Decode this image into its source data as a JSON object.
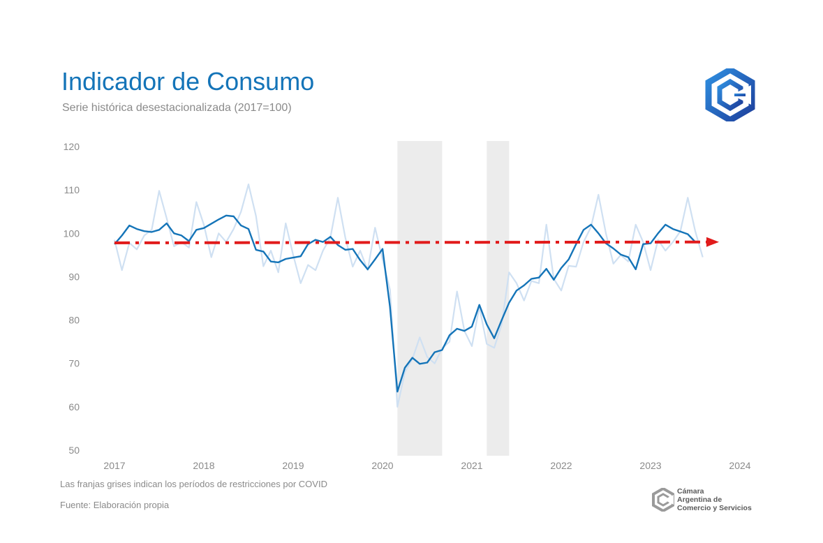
{
  "header": {
    "title": "Indicador de Consumo",
    "subtitle": "Serie histórica desestacionalizada (2017=100)"
  },
  "footer": {
    "note": "Las franjas grises indican los períodos de restricciones por COVID",
    "source": "Fuente: Elaboración propia"
  },
  "organization": {
    "line1": "Cámara",
    "line2": "Argentina de",
    "line3": "Comercio y Servicios"
  },
  "colors": {
    "title": "#1474b8",
    "seasonal_adjusted": "#1474b8",
    "original": "#cfe0f2",
    "trend_arrow": "#e11b1b",
    "covid_band": "#ececec"
  },
  "chart_data": {
    "type": "line",
    "x_start": "2017-01",
    "x_frequency": "monthly",
    "x_ticks": [
      "2017",
      "2018",
      "2019",
      "2020",
      "2021",
      "2022",
      "2023",
      "2024"
    ],
    "y_ticks": [
      "50",
      "60",
      "70",
      "80",
      "90",
      "100",
      "110",
      "120"
    ],
    "ylim": [
      50,
      120
    ],
    "xlim": [
      "2017-01",
      "2024-01"
    ],
    "grid": false,
    "legend": "none",
    "shaded_periods": [
      {
        "start": "2020-03",
        "end": "2020-09"
      },
      {
        "start": "2021-03",
        "end": "2021-06"
      }
    ],
    "trend_arrow": {
      "start": "2017-01",
      "end": "2023-10",
      "y_start": 97.8,
      "y_end": 98.0
    },
    "series": [
      {
        "role": "seasonally-adjusted",
        "values": [
          97.5,
          99.5,
          101.8,
          101.0,
          100.5,
          100.3,
          100.8,
          102.3,
          100.0,
          99.5,
          98.2,
          100.8,
          101.2,
          102.2,
          103.2,
          104.1,
          103.9,
          101.8,
          101.0,
          96.2,
          95.8,
          93.5,
          93.3,
          94.1,
          94.4,
          94.7,
          97.5,
          98.5,
          98.0,
          99.2,
          97.3,
          96.2,
          96.4,
          93.8,
          91.7,
          94.0,
          96.4,
          83.0,
          63.5,
          69.0,
          71.3,
          69.9,
          70.2,
          72.6,
          73.1,
          76.5,
          78.0,
          77.5,
          78.5,
          83.5,
          79.0,
          75.8,
          80.0,
          84.0,
          86.8,
          88.0,
          89.5,
          89.8,
          91.8,
          89.3,
          92.0,
          94.0,
          97.5,
          100.8,
          102.0,
          100.0,
          97.7,
          96.5,
          95.1,
          94.5,
          91.7,
          97.5,
          97.7,
          100.0,
          102.0,
          101.0,
          100.4,
          99.8,
          98.0
        ]
      },
      {
        "role": "original",
        "values": [
          98.5,
          91.5,
          97.8,
          96.3,
          99.5,
          100.8,
          109.8,
          103.5,
          97.0,
          98.0,
          96.7,
          107.2,
          102.0,
          94.5,
          100.0,
          98.0,
          101.0,
          105.0,
          111.3,
          104.0,
          92.4,
          96.0,
          91.0,
          102.3,
          95.0,
          88.5,
          92.7,
          91.5,
          96.0,
          99.0,
          108.2,
          99.0,
          92.3,
          96.0,
          91.5,
          101.3,
          94.0,
          87.0,
          60.0,
          68.0,
          71.0,
          76.0,
          71.5,
          70.0,
          73.5,
          75.0,
          86.6,
          77.5,
          74.0,
          83.0,
          74.5,
          73.6,
          79.0,
          91.0,
          88.5,
          84.5,
          89.0,
          88.5,
          102.0,
          89.5,
          86.8,
          92.5,
          92.3,
          98.0,
          101.5,
          108.9,
          100.0,
          93.0,
          95.0,
          93.5,
          102.0,
          98.0,
          91.5,
          98.5,
          96.0,
          98.0,
          100.5,
          108.2,
          100.5,
          94.5
        ]
      }
    ]
  }
}
